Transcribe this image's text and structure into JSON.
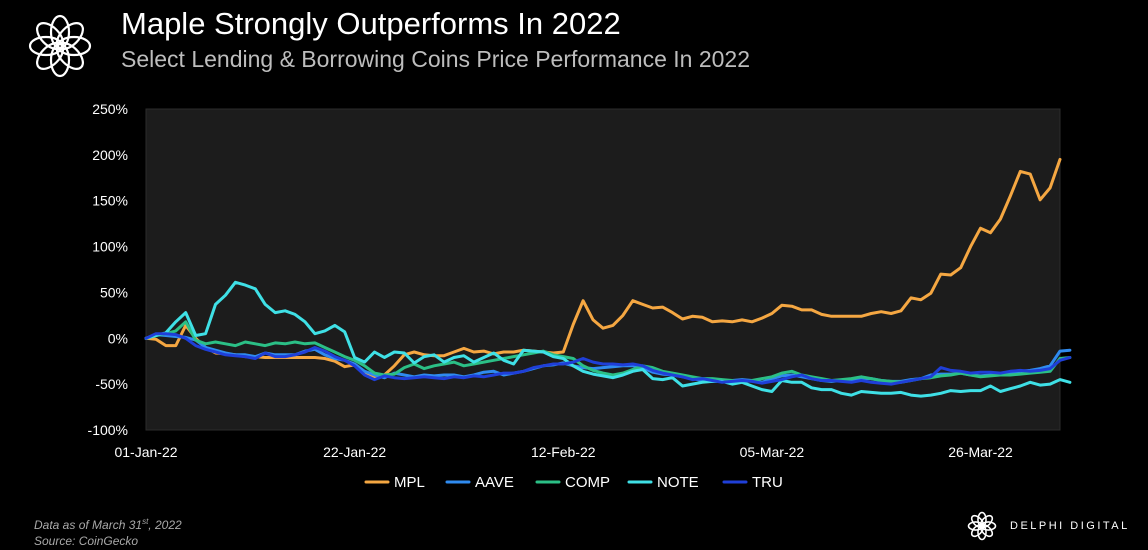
{
  "header": {
    "title": "Maple Strongly Outperforms In 2022",
    "subtitle": "Select Lending & Borrowing Coins Price Performance In 2022"
  },
  "footer": {
    "note_prefix": "Data as of March 31",
    "note_sup": "st",
    "note_suffix": ", 2022",
    "source": "Source: CoinGecko",
    "brand": "DELPHI DIGITAL"
  },
  "icons": {
    "top_logo": "flower-ring-logo-icon",
    "brand_logo": "flower-ring-logo-icon"
  },
  "chart_data": {
    "type": "line",
    "title": "Maple Strongly Outperforms In 2022",
    "subtitle": "Select Lending & Borrowing Coins Price Performance In 2022",
    "x_ticks": [
      "01-Jan-22",
      "22-Jan-22",
      "12-Feb-22",
      "05-Mar-22",
      "26-Mar-22"
    ],
    "x_tick_days": [
      0,
      21,
      42,
      63,
      84
    ],
    "xlim": [
      0,
      92
    ],
    "y_ticks": [
      "-100%",
      "-50%",
      "0%",
      "50%",
      "100%",
      "150%",
      "200%",
      "250%"
    ],
    "ylim": [
      -100,
      250
    ],
    "y_tick_values": [
      -100,
      -50,
      0,
      50,
      100,
      150,
      200,
      250
    ],
    "legend_position": "bottom",
    "plot_background": "#1c1c1c",
    "series": [
      {
        "name": "MPL",
        "color": "#f5a742",
        "values": [
          0,
          -1,
          -8,
          -8,
          14,
          0,
          -10,
          -16,
          -17,
          -18,
          -20,
          -20,
          -21,
          -21,
          -21,
          -21,
          -21,
          -21,
          -22,
          -25,
          -31,
          -29,
          -37,
          -42,
          -40,
          -30,
          -18,
          -15,
          -18,
          -19,
          -19,
          -15,
          -11,
          -15,
          -14,
          -17,
          -15,
          -15,
          -13,
          -14,
          -15,
          -16,
          -15,
          15,
          41,
          20,
          11,
          14,
          25,
          41,
          37,
          33,
          34,
          28,
          21,
          24,
          23,
          18,
          19,
          18,
          20,
          18,
          22,
          27,
          36,
          35,
          31,
          31,
          26,
          24,
          24,
          24,
          24,
          27,
          29,
          27,
          30,
          44,
          42,
          49,
          70,
          69,
          77,
          100,
          120,
          115,
          130,
          155,
          182,
          179,
          151,
          164,
          195
        ]
      },
      {
        "name": "AAVE",
        "color": "#2f8bf0",
        "values": [
          0,
          4,
          3,
          2,
          1,
          -2,
          -10,
          -13,
          -16,
          -18,
          -18,
          -20,
          -16,
          -18,
          -18,
          -18,
          -14,
          -12,
          -18,
          -22,
          -24,
          -28,
          -36,
          -40,
          -43,
          -38,
          -40,
          -42,
          -40,
          -41,
          -40,
          -40,
          -42,
          -40,
          -37,
          -36,
          -40,
          -38,
          -36,
          -33,
          -30,
          -29,
          -27,
          -30,
          -32,
          -33,
          -32,
          -31,
          -30,
          -30,
          -32,
          -37,
          -39,
          -40,
          -42,
          -44,
          -46,
          -47,
          -46,
          -46,
          -45,
          -46,
          -48,
          -44,
          -41,
          -40,
          -42,
          -44,
          -46,
          -47,
          -46,
          -45,
          -44,
          -44,
          -46,
          -47,
          -47,
          -45,
          -44,
          -40,
          -39,
          -39,
          -38,
          -40,
          -41,
          -40,
          -39,
          -38,
          -36,
          -35,
          -33,
          -30,
          -14,
          -13
        ]
      },
      {
        "name": "COMP",
        "color": "#2bbf86",
        "values": [
          0,
          3,
          5,
          8,
          18,
          -2,
          -6,
          -4,
          -6,
          -8,
          -4,
          -6,
          -8,
          -5,
          -6,
          -4,
          -6,
          -5,
          -10,
          -15,
          -20,
          -24,
          -30,
          -38,
          -40,
          -39,
          -32,
          -28,
          -33,
          -30,
          -28,
          -26,
          -30,
          -28,
          -26,
          -24,
          -22,
          -20,
          -18,
          -16,
          -14,
          -18,
          -20,
          -22,
          -30,
          -35,
          -38,
          -40,
          -38,
          -34,
          -30,
          -32,
          -36,
          -38,
          -40,
          -42,
          -44,
          -44,
          -45,
          -46,
          -48,
          -46,
          -44,
          -42,
          -38,
          -36,
          -40,
          -42,
          -44,
          -46,
          -45,
          -44,
          -42,
          -44,
          -46,
          -47,
          -48,
          -46,
          -44,
          -43,
          -41,
          -40,
          -38,
          -40,
          -42,
          -41,
          -40,
          -40,
          -39,
          -38,
          -37,
          -36,
          -22,
          -21
        ]
      },
      {
        "name": "NOTE",
        "color": "#3fe0e6",
        "values": [
          0,
          3,
          6,
          18,
          28,
          3,
          5,
          37,
          47,
          61,
          58,
          54,
          37,
          28,
          30,
          26,
          18,
          5,
          8,
          14,
          7,
          -21,
          -26,
          -15,
          -21,
          -15,
          -16,
          -27,
          -20,
          -18,
          -26,
          -21,
          -19,
          -26,
          -21,
          -16,
          -24,
          -28,
          -13,
          -14,
          -15,
          -20,
          -22,
          -30,
          -36,
          -39,
          -41,
          -43,
          -40,
          -36,
          -34,
          -44,
          -45,
          -43,
          -52,
          -50,
          -48,
          -47,
          -47,
          -50,
          -48,
          -52,
          -56,
          -58,
          -46,
          -48,
          -48,
          -54,
          -56,
          -56,
          -60,
          -62,
          -58,
          -59,
          -60,
          -60,
          -59,
          -62,
          -63,
          -62,
          -60,
          -57,
          -58,
          -57,
          -57,
          -52,
          -58,
          -55,
          -52,
          -48,
          -51,
          -50,
          -45,
          -48
        ]
      },
      {
        "name": "TRU",
        "color": "#1f3fd8",
        "values": [
          0,
          5,
          5,
          4,
          0,
          -8,
          -12,
          -15,
          -18,
          -19,
          -20,
          -22,
          -16,
          -20,
          -20,
          -18,
          -15,
          -10,
          -14,
          -20,
          -24,
          -30,
          -40,
          -45,
          -41,
          -43,
          -44,
          -43,
          -42,
          -43,
          -44,
          -42,
          -43,
          -41,
          -42,
          -40,
          -38,
          -38,
          -36,
          -32,
          -30,
          -28,
          -28,
          -26,
          -22,
          -26,
          -28,
          -28,
          -29,
          -28,
          -30,
          -35,
          -38,
          -40,
          -42,
          -45,
          -44,
          -46,
          -48,
          -47,
          -46,
          -47,
          -49,
          -47,
          -45,
          -42,
          -40,
          -44,
          -46,
          -46,
          -47,
          -48,
          -46,
          -48,
          -49,
          -50,
          -48,
          -46,
          -44,
          -42,
          -32,
          -35,
          -36,
          -38,
          -37,
          -37,
          -38,
          -36,
          -35,
          -36,
          -35,
          -33,
          -24,
          -21
        ]
      }
    ]
  }
}
